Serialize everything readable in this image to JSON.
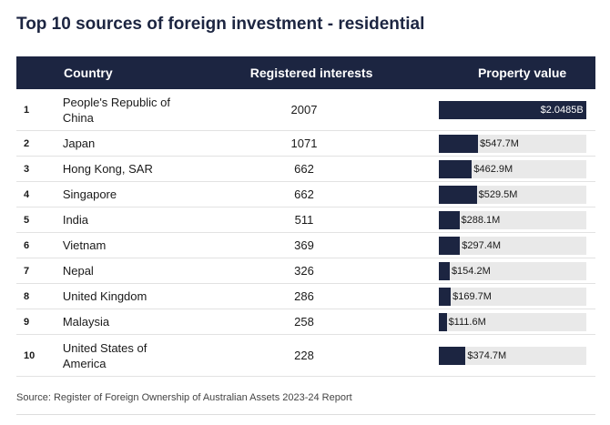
{
  "chart_data": {
    "type": "table-bar",
    "title": "Top 10 sources of foreign investment - residential",
    "columns": [
      "Country",
      "Registered interests",
      "Property value"
    ],
    "ranks": [
      1,
      2,
      3,
      4,
      5,
      6,
      7,
      8,
      9,
      10
    ],
    "categories": [
      "People's Republic of China",
      "Japan",
      "Hong Kong, SAR",
      "Singapore",
      "India",
      "Vietnam",
      "Nepal",
      "United Kingdom",
      "Malaysia",
      "United States of America"
    ],
    "registered_interests": [
      2007,
      1071,
      662,
      662,
      511,
      369,
      326,
      286,
      258,
      228
    ],
    "values": [
      2048500000,
      547700000,
      462900000,
      529500000,
      288100000,
      297400000,
      154200000,
      169700000,
      111600000,
      374700000
    ],
    "value_labels": [
      "$2.0485B",
      "$547.7M",
      "$462.9M",
      "$529.5M",
      "$288.1M",
      "$297.4M",
      "$154.2M",
      "$169.7M",
      "$111.6M",
      "$374.7M"
    ],
    "color": "#1c2541",
    "source": "Source: Register of Foreign Ownership of Australian Assets 2023-24 Report"
  }
}
